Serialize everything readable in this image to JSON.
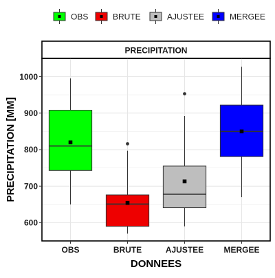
{
  "chart_data": {
    "type": "box",
    "title": "",
    "facet_label": "PRECIPITATION",
    "xlabel": "DONNEES",
    "ylabel": "PRECIPITATION [MM]",
    "ylim": [
      550,
      1050
    ],
    "yticks": [
      600,
      700,
      800,
      900,
      1000
    ],
    "grid": true,
    "legend_position": "top",
    "categories": [
      "OBS",
      "BRUTE",
      "AJUSTEE",
      "MERGEE"
    ],
    "series": [
      {
        "name": "OBS",
        "color": "#00ff00",
        "whisker_low": 650,
        "q1": 743,
        "median": 810,
        "q3": 908,
        "whisker_high": 995,
        "mean": 820,
        "outliers": []
      },
      {
        "name": "BRUTE",
        "color": "#ee0000",
        "whisker_low": 570,
        "q1": 590,
        "median": 651,
        "q3": 676,
        "whisker_high": 797,
        "mean": 654,
        "outliers": [
          816
        ]
      },
      {
        "name": "AJUSTEE",
        "color": "#bebebe",
        "whisker_low": 590,
        "q1": 641,
        "median": 678,
        "q3": 755,
        "whisker_high": 892,
        "mean": 713,
        "outliers": [
          953
        ]
      },
      {
        "name": "MERGEE",
        "color": "#0000ff",
        "whisker_low": 670,
        "q1": 781,
        "median": 850,
        "q3": 922,
        "whisker_high": 1027,
        "mean": 850,
        "outliers": []
      }
    ]
  }
}
